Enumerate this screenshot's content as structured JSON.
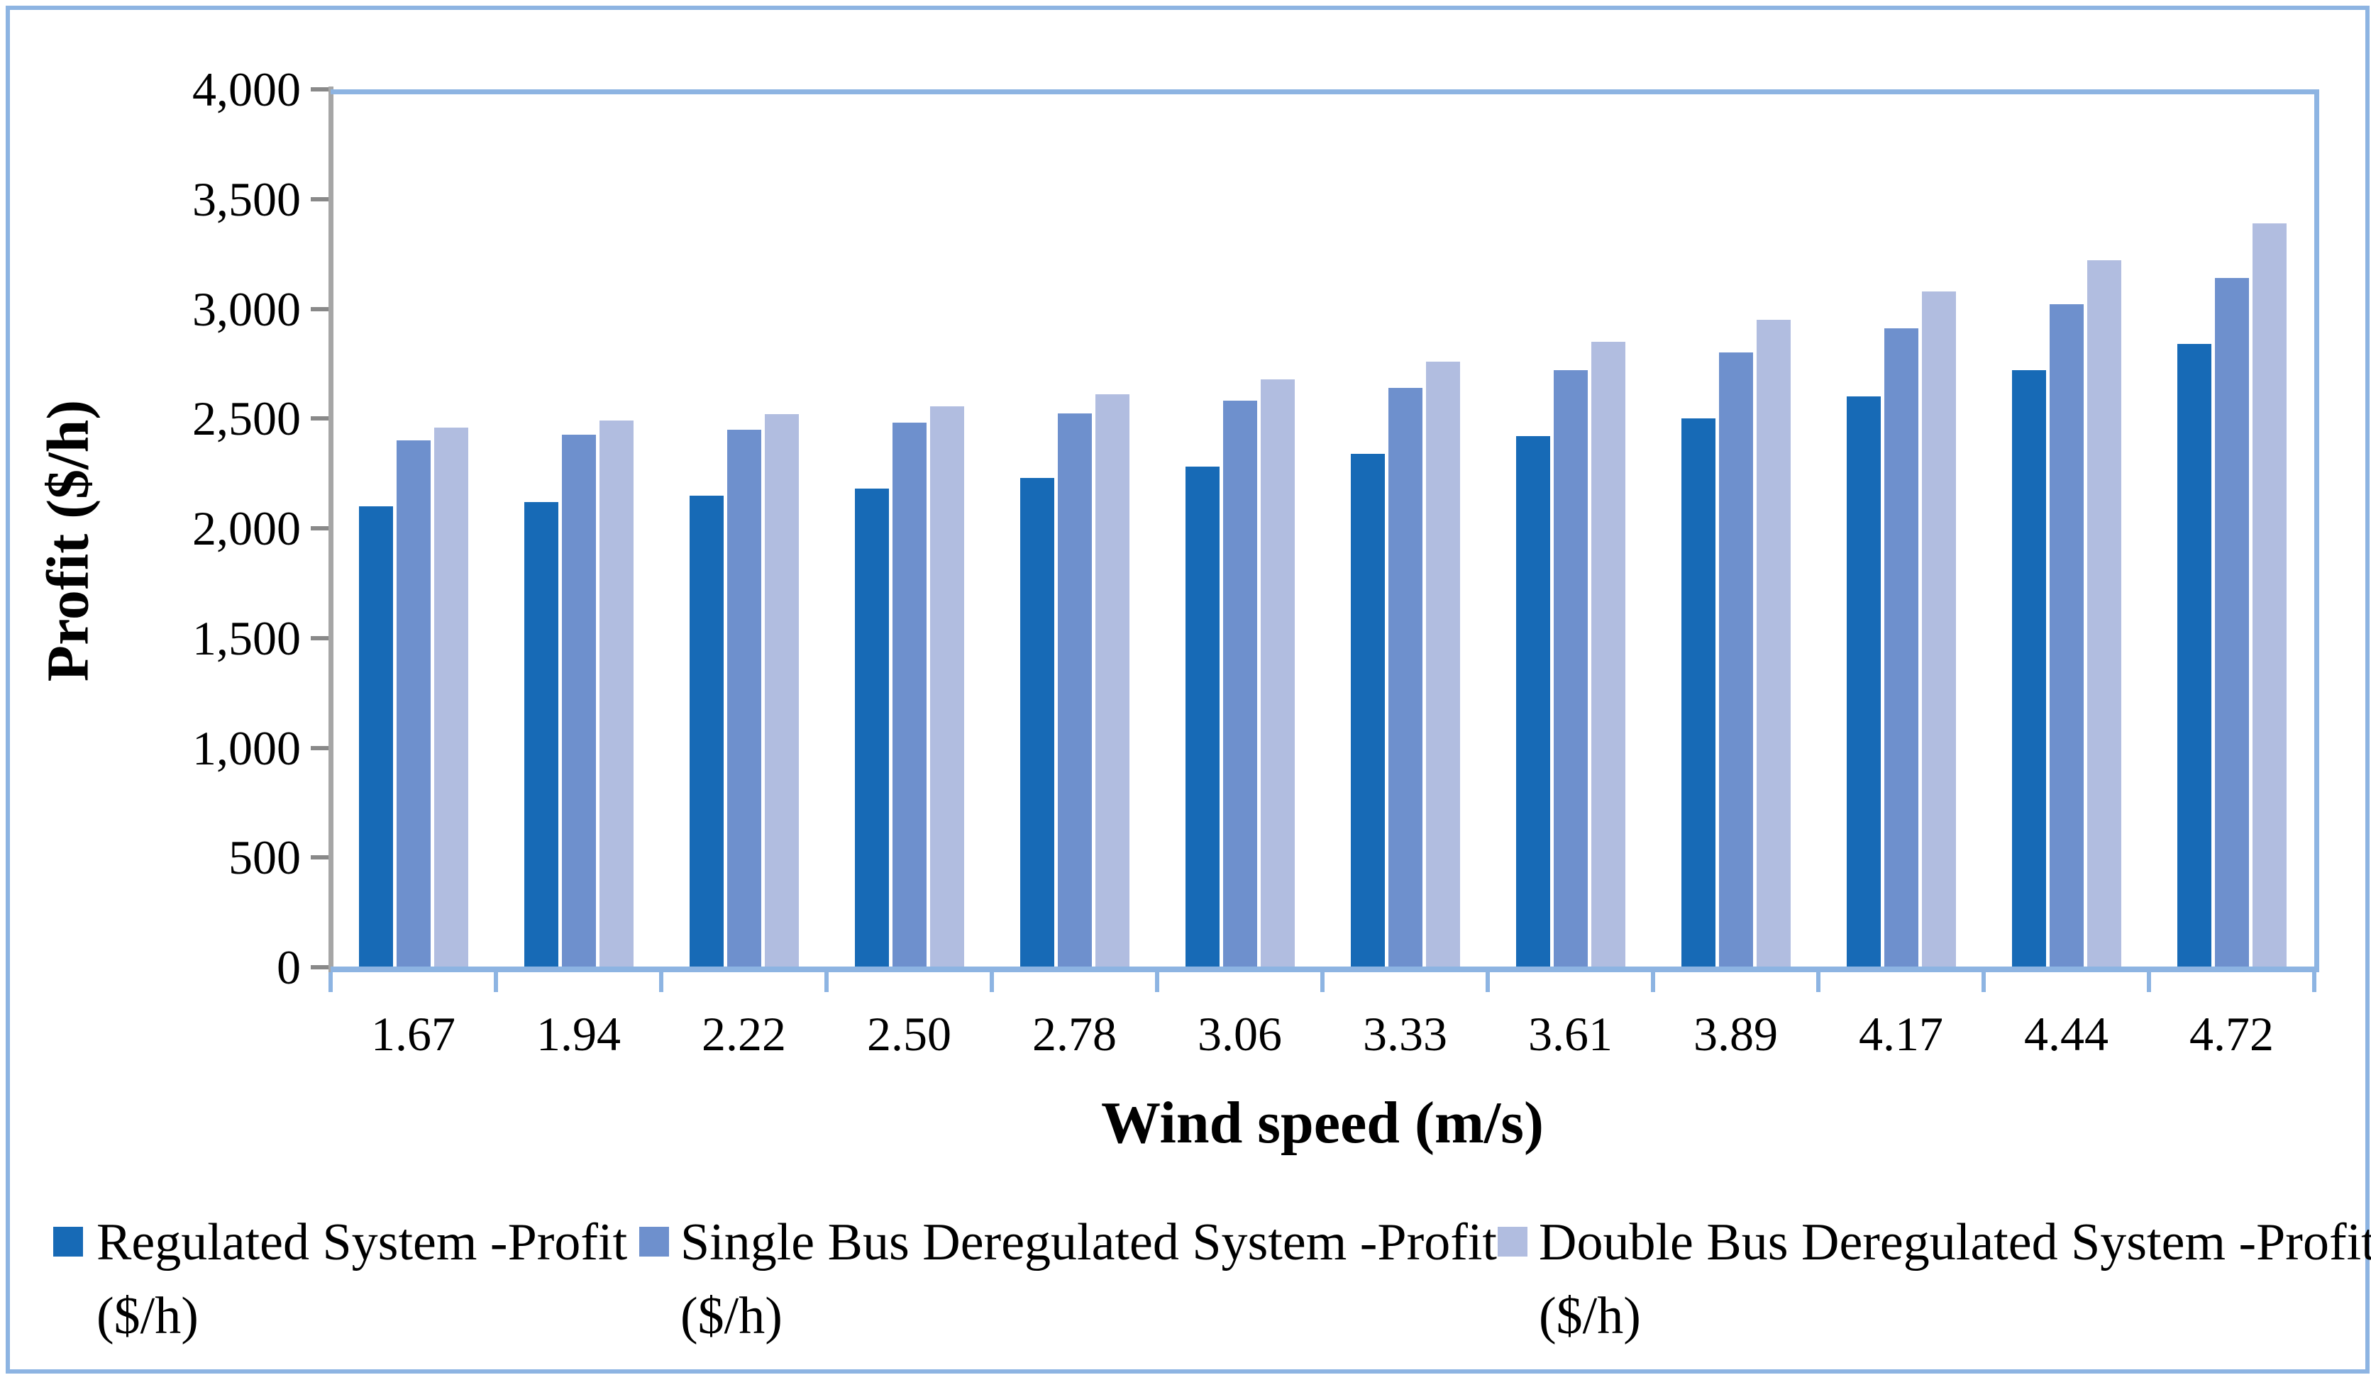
{
  "figure": {
    "border_color": "#8DB4E2",
    "axis_line_color": "#8DB4E2",
    "y_axis_line_color": "#A6A6A6"
  },
  "y_axis": {
    "title": "Profit ($/h)",
    "ticks": [
      {
        "value": 0,
        "label": "0"
      },
      {
        "value": 500,
        "label": "500"
      },
      {
        "value": 1000,
        "label": "1,000"
      },
      {
        "value": 1500,
        "label": "1,500"
      },
      {
        "value": 2000,
        "label": "2,000"
      },
      {
        "value": 2500,
        "label": "2,500"
      },
      {
        "value": 3000,
        "label": "3,000"
      },
      {
        "value": 3500,
        "label": "3,500"
      },
      {
        "value": 4000,
        "label": "4,000"
      }
    ]
  },
  "x_axis": {
    "title": "Wind speed (m/s)"
  },
  "legend": [
    {
      "line1": "Regulated System -Profit",
      "line2": "($/h)",
      "color": "#176AB6"
    },
    {
      "line1": "Single Bus Deregulated System -Profit",
      "line2": "($/h)",
      "color": "#6E90CD"
    },
    {
      "line1": "Double Bus Deregulated System -Profit",
      "line2": "($/h)",
      "color": "#B1BDE0"
    }
  ],
  "chart_data": {
    "type": "bar",
    "title": "",
    "xlabel": "Wind speed (m/s)",
    "ylabel": "Profit ($/h)",
    "ylim": [
      0,
      4000
    ],
    "grid": false,
    "legend_position": "bottom",
    "categories": [
      "1.67",
      "1.94",
      "2.22",
      "2.50",
      "2.78",
      "3.06",
      "3.33",
      "3.61",
      "3.89",
      "4.17",
      "4.44",
      "4.72"
    ],
    "series": [
      {
        "name": "Regulated System -Profit ($/h)",
        "color": "#176AB6",
        "values": [
          2100,
          2120,
          2150,
          2180,
          2230,
          2280,
          2340,
          2420,
          2500,
          2600,
          2720,
          2840
        ]
      },
      {
        "name": "Single Bus Deregulated System -Profit ($/h)",
        "color": "#6E90CD",
        "values": [
          2400,
          2425,
          2450,
          2480,
          2525,
          2580,
          2640,
          2720,
          2800,
          2910,
          3020,
          3140
        ]
      },
      {
        "name": "Double Bus Deregulated System -Profit ($/h)",
        "color": "#B1BDE0",
        "values": [
          2460,
          2490,
          2520,
          2555,
          2610,
          2680,
          2760,
          2850,
          2950,
          3080,
          3220,
          3390
        ]
      }
    ]
  }
}
